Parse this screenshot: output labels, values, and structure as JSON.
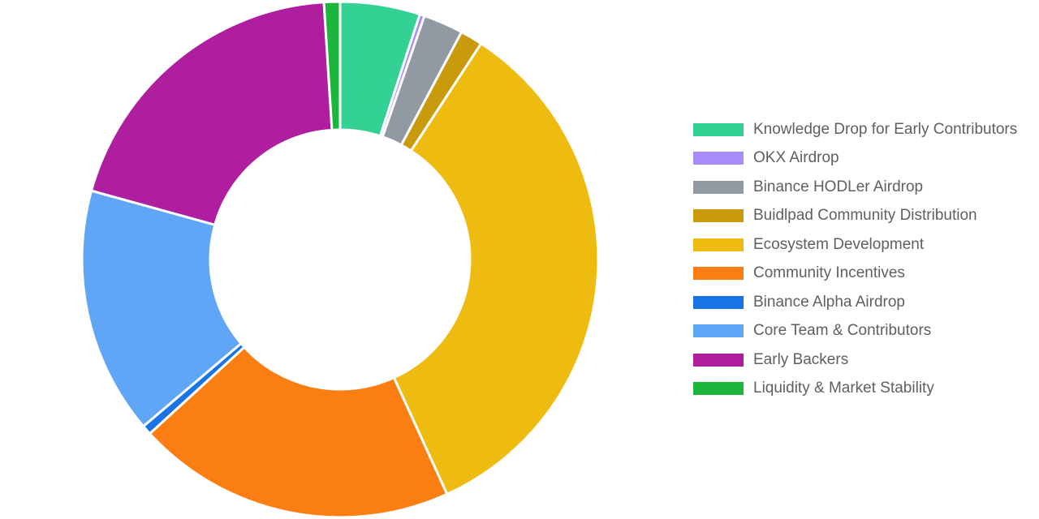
{
  "chart_data": {
    "type": "pie",
    "variant": "donut",
    "title": "",
    "legend_position": "right",
    "start_angle_deg": 0,
    "slices": [
      {
        "label": "Knowledge Drop for Early Contributors",
        "value": 5.0,
        "color": "#34d194"
      },
      {
        "label": "OKX Airdrop",
        "value": 0.3,
        "color": "#a78bfa"
      },
      {
        "label": "Binance HODLer Airdrop",
        "value": 2.5,
        "color": "#9199a3"
      },
      {
        "label": "Buidlpad Community Distribution",
        "value": 1.4,
        "color": "#ca9a0d"
      },
      {
        "label": "Ecosystem Development",
        "value": 34.0,
        "color": "#eebb10"
      },
      {
        "label": "Community Incentives",
        "value": 20.0,
        "color": "#fb7e13"
      },
      {
        "label": "Binance Alpha Airdrop",
        "value": 0.6,
        "color": "#1a74e6"
      },
      {
        "label": "Core Team & Contributors",
        "value": 15.5,
        "color": "#60a6f7"
      },
      {
        "label": "Early Backers",
        "value": 19.7,
        "color": "#b01ea0"
      },
      {
        "label": "Liquidity & Market Stability",
        "value": 1.0,
        "color": "#1db63c"
      }
    ]
  }
}
